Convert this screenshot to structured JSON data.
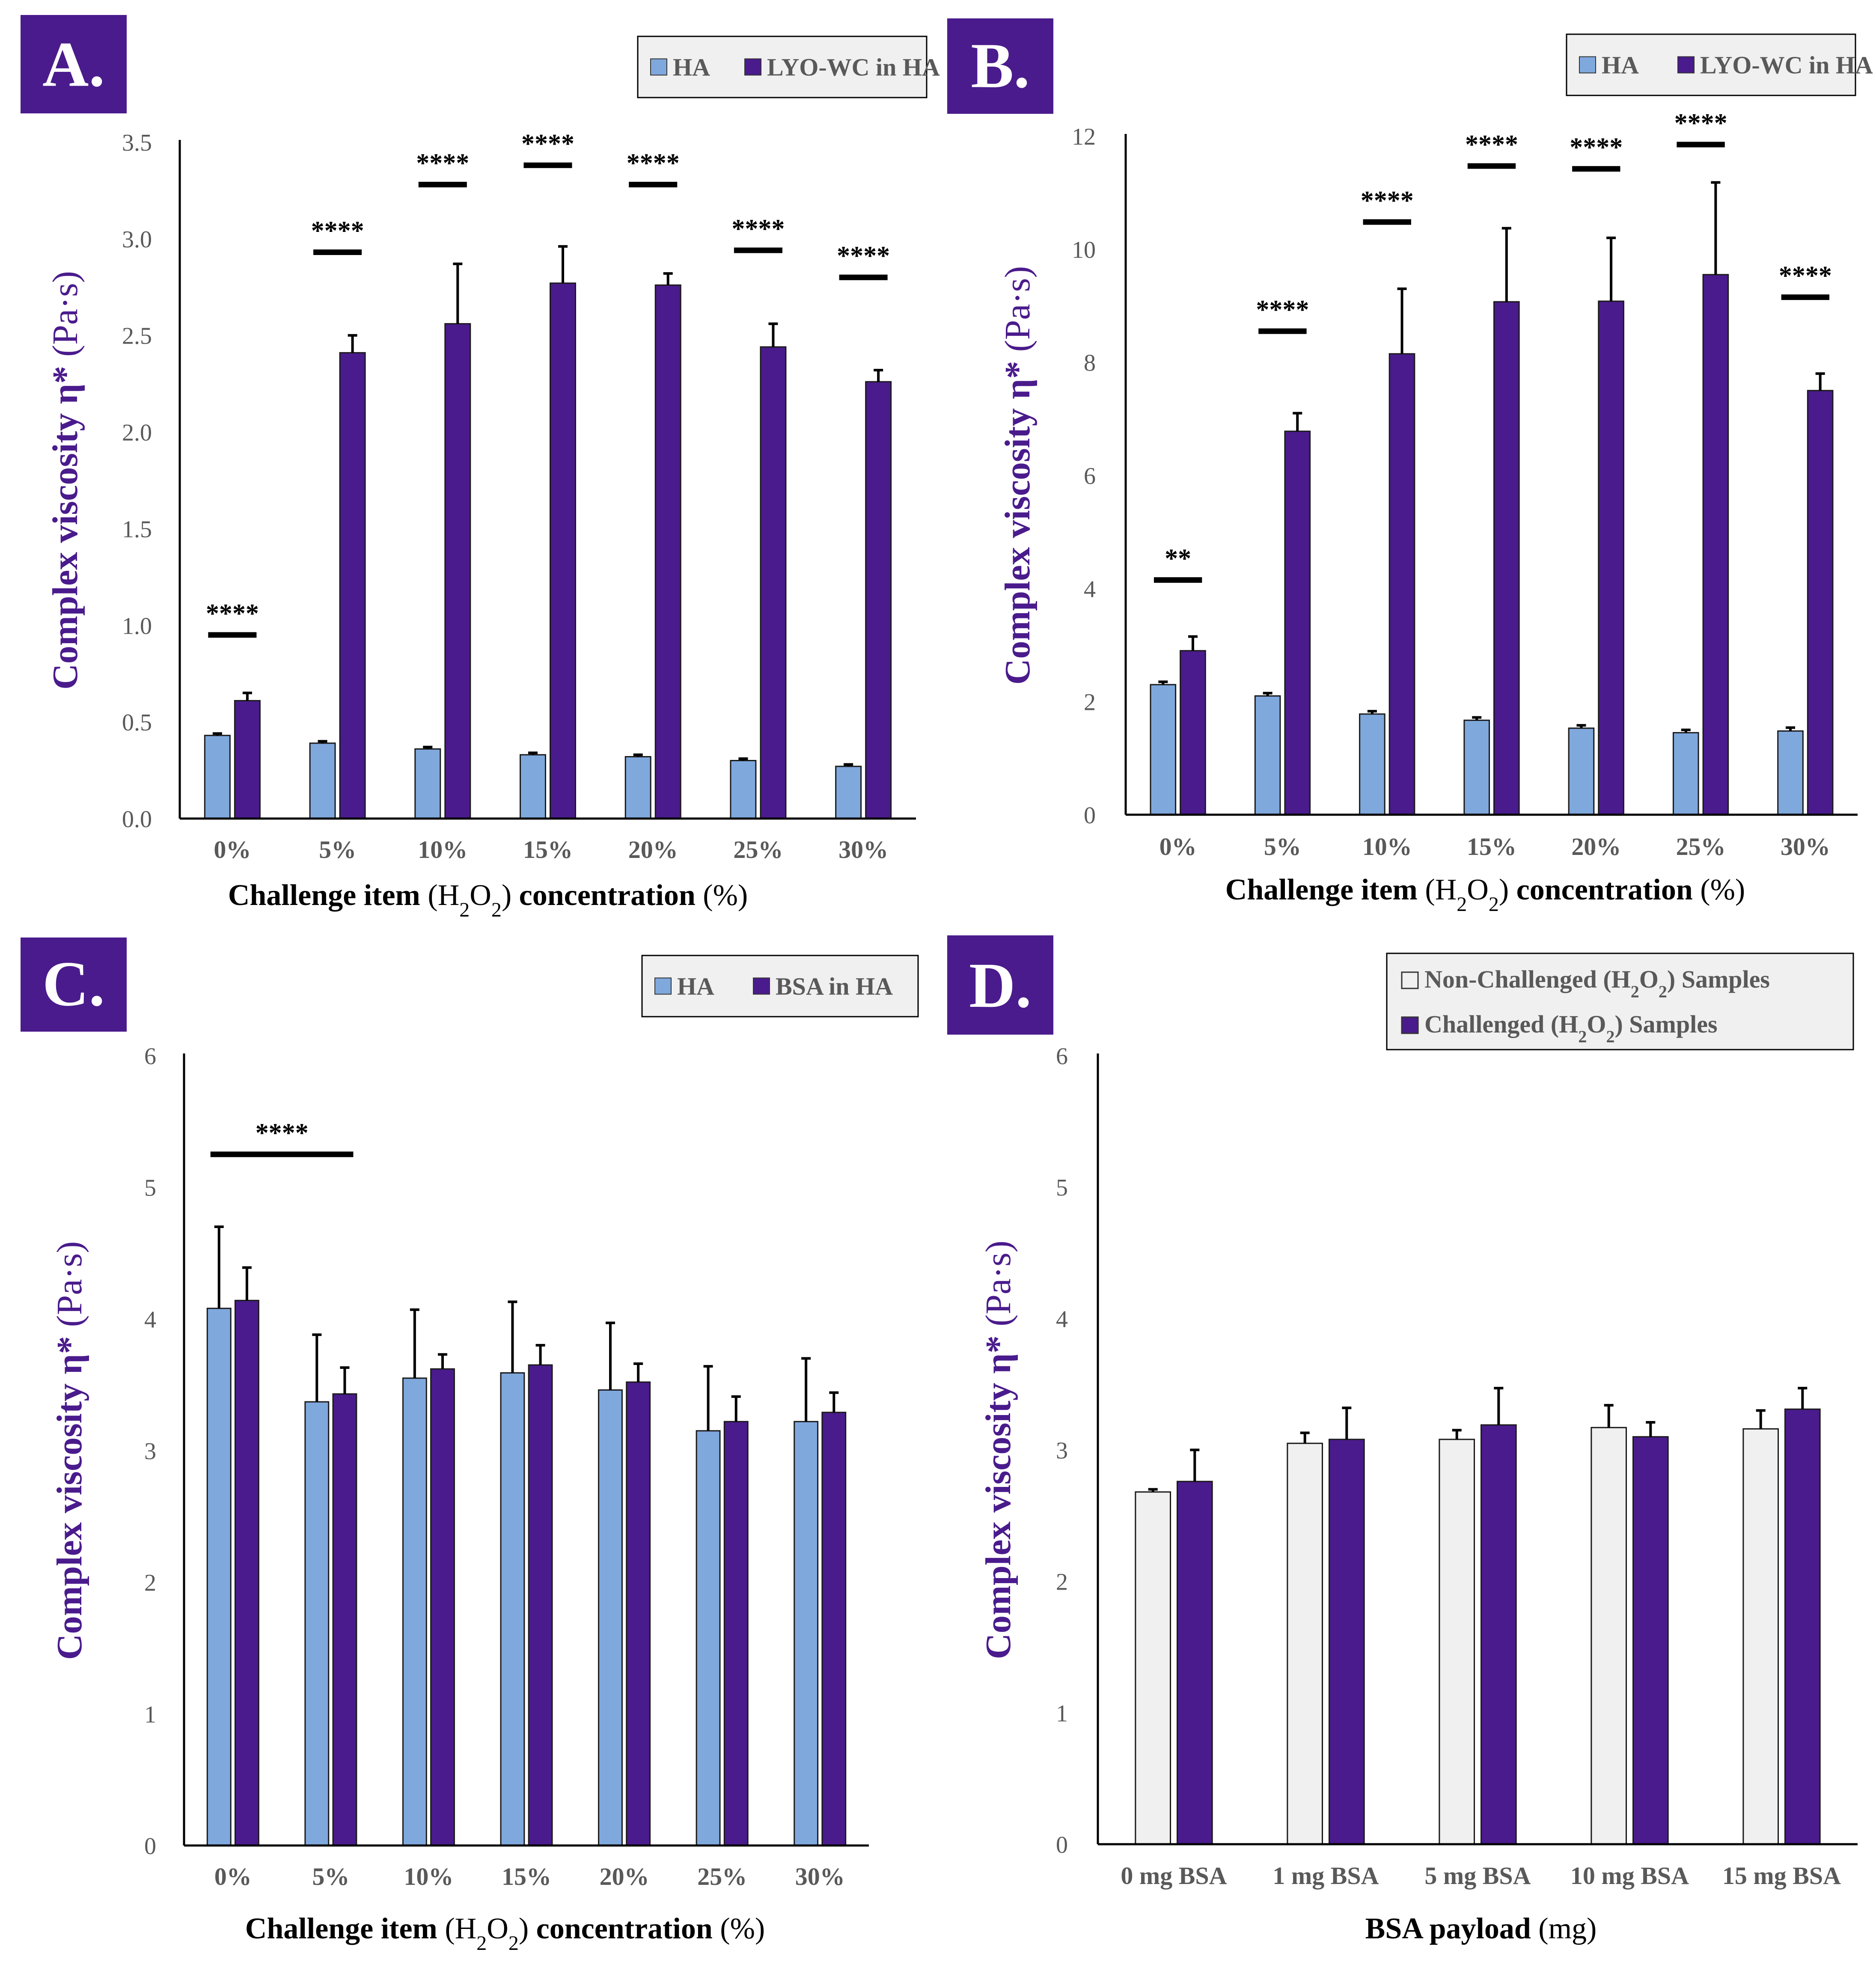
{
  "colors": {
    "ha": "#7FA8DD",
    "dark": "#4A1B8C",
    "light_grey": "#F0F0F0",
    "axis": "#000000",
    "tick_text": "#595959",
    "label_purple": "#4A1B8C",
    "legend_bg": "#F0F0F0"
  },
  "chart_data": [
    {
      "panel": "A.",
      "type": "bar",
      "title": "",
      "categories": [
        "0%",
        "5%",
        "10%",
        "15%",
        "20%",
        "25%",
        "30%"
      ],
      "series": [
        {
          "name": "HA",
          "color": "#7FA8DD",
          "values": [
            0.43,
            0.39,
            0.36,
            0.33,
            0.32,
            0.3,
            0.27
          ],
          "errors": [
            0.01,
            0.01,
            0.01,
            0.01,
            0.01,
            0.01,
            0.01
          ]
        },
        {
          "name": "LYO-WC in HA",
          "color": "#4A1B8C",
          "values": [
            0.61,
            2.41,
            2.56,
            2.77,
            2.76,
            2.44,
            2.26
          ],
          "errors": [
            0.04,
            0.09,
            0.31,
            0.19,
            0.06,
            0.12,
            0.06
          ]
        }
      ],
      "ylim": [
        0,
        3.5
      ],
      "yticks": [
        "0.0",
        "0.5",
        "1.0",
        "1.5",
        "2.0",
        "2.5",
        "3.0",
        "3.5"
      ],
      "ylabel_bold": "Complex viscosity η*",
      "ylabel_unit": "(Pa·s)",
      "xlabel": {
        "bold": "Challenge item",
        "h": "H",
        "sub1": "2",
        "o": "O",
        "sub2": "2",
        "bold2": "concentration",
        "unit": "(%)"
      },
      "significance": [
        {
          "label": "****",
          "y": 0.95,
          "from": 0,
          "to": 0
        },
        {
          "label": "****",
          "y": 2.93,
          "from": 1,
          "to": 1
        },
        {
          "label": "****",
          "y": 3.28,
          "from": 2,
          "to": 2
        },
        {
          "label": "****",
          "y": 3.38,
          "from": 3,
          "to": 3
        },
        {
          "label": "****",
          "y": 3.28,
          "from": 4,
          "to": 4
        },
        {
          "label": "****",
          "y": 2.94,
          "from": 5,
          "to": 5
        },
        {
          "label": "****",
          "y": 2.8,
          "from": 6,
          "to": 6
        }
      ],
      "legend": [
        {
          "name": "HA",
          "color": "#7FA8DD"
        },
        {
          "name": "LYO-WC in HA",
          "color": "#4A1B8C"
        }
      ],
      "legend_position": "top-right"
    },
    {
      "panel": "B.",
      "type": "bar",
      "title": "",
      "categories": [
        "0%",
        "5%",
        "10%",
        "15%",
        "20%",
        "25%",
        "30%"
      ],
      "series": [
        {
          "name": "HA",
          "color": "#7FA8DD",
          "values": [
            2.3,
            2.1,
            1.78,
            1.67,
            1.53,
            1.45,
            1.48
          ],
          "errors": [
            0.05,
            0.05,
            0.05,
            0.05,
            0.05,
            0.05,
            0.06
          ]
        },
        {
          "name": "LYO-WC in HA",
          "color": "#4A1B8C",
          "values": [
            2.9,
            6.78,
            8.15,
            9.07,
            9.08,
            9.55,
            7.5
          ],
          "errors": [
            0.25,
            0.32,
            1.15,
            1.3,
            1.12,
            1.63,
            0.3
          ]
        }
      ],
      "ylim": [
        0,
        12
      ],
      "yticks": [
        "0",
        "2",
        "4",
        "6",
        "8",
        "10",
        "12"
      ],
      "ylabel_bold": "Complex viscosity η*",
      "ylabel_unit": "(Pa·s)",
      "xlabel": {
        "bold": "Challenge item",
        "h": "H",
        "sub1": "2",
        "o": "O",
        "sub2": "2",
        "bold2": "concentration",
        "unit": "(%)"
      },
      "significance": [
        {
          "label": "**",
          "y": 4.15,
          "from": 0,
          "to": 0
        },
        {
          "label": "****",
          "y": 8.55,
          "from": 1,
          "to": 1
        },
        {
          "label": "****",
          "y": 10.48,
          "from": 2,
          "to": 2
        },
        {
          "label": "****",
          "y": 11.47,
          "from": 3,
          "to": 3
        },
        {
          "label": "****",
          "y": 11.42,
          "from": 4,
          "to": 4
        },
        {
          "label": "****",
          "y": 11.85,
          "from": 5,
          "to": 5
        },
        {
          "label": "****",
          "y": 9.15,
          "from": 6,
          "to": 6
        }
      ],
      "legend": [
        {
          "name": "HA",
          "color": "#7FA8DD"
        },
        {
          "name": "LYO-WC in HA",
          "color": "#4A1B8C"
        }
      ],
      "legend_position": "top-right"
    },
    {
      "panel": "C.",
      "type": "bar",
      "title": "",
      "categories": [
        "0%",
        "5%",
        "10%",
        "15%",
        "20%",
        "25%",
        "30%"
      ],
      "series": [
        {
          "name": "HA",
          "color": "#7FA8DD",
          "values": [
            4.08,
            3.37,
            3.55,
            3.59,
            3.46,
            3.15,
            3.22
          ],
          "errors": [
            0.62,
            0.51,
            0.52,
            0.54,
            0.51,
            0.49,
            0.48
          ]
        },
        {
          "name": "BSA in HA",
          "color": "#4A1B8C",
          "values": [
            4.14,
            3.43,
            3.62,
            3.65,
            3.52,
            3.22,
            3.29
          ],
          "errors": [
            0.25,
            0.2,
            0.11,
            0.15,
            0.14,
            0.19,
            0.15
          ]
        }
      ],
      "ylim": [
        0,
        6
      ],
      "yticks": [
        "0",
        "1",
        "2",
        "3",
        "4",
        "5",
        "6"
      ],
      "ylabel_bold": "Complex viscosity η*",
      "ylabel_unit": "(Pa·s)",
      "xlabel": {
        "bold": "Challenge item",
        "h": "H",
        "sub1": "2",
        "o": "O",
        "sub2": "2",
        "bold2": "concentration",
        "unit": "(%)"
      },
      "significance": [
        {
          "label": "****",
          "y": 5.25,
          "from": 0,
          "to": 1
        }
      ],
      "legend": [
        {
          "name": "HA",
          "color": "#7FA8DD"
        },
        {
          "name": "BSA in HA",
          "color": "#4A1B8C"
        }
      ],
      "legend_position": "top-right"
    },
    {
      "panel": "D.",
      "type": "bar",
      "title": "",
      "categories": [
        "0 mg BSA",
        "1 mg BSA",
        "5 mg BSA",
        "10 mg BSA",
        "15 mg BSA"
      ],
      "series": [
        {
          "name": "Non-Challenged (H2O2) Samples",
          "color": "#F0F0F0",
          "values": [
            2.68,
            3.05,
            3.08,
            3.17,
            3.16
          ],
          "errors": [
            0.02,
            0.08,
            0.07,
            0.17,
            0.14
          ]
        },
        {
          "name": "Challenged (H2O2) Samples",
          "color": "#4A1B8C",
          "values": [
            2.76,
            3.08,
            3.19,
            3.1,
            3.31
          ],
          "errors": [
            0.24,
            0.24,
            0.28,
            0.11,
            0.16
          ]
        }
      ],
      "ylim": [
        0,
        6
      ],
      "yticks": [
        "0",
        "1",
        "2",
        "3",
        "4",
        "5",
        "6"
      ],
      "ylabel_bold": "Complex viscosity η*",
      "ylabel_unit": "(Pa·s)",
      "xlabel": {
        "bold": "BSA payload",
        "unit": "(mg)"
      },
      "significance": [],
      "legend": [
        {
          "pre": "Non-Challenged",
          "h": "H",
          "sub1": "2",
          "o": "O",
          "sub2": "2",
          "post": "Samples",
          "color": "#F0F0F0"
        },
        {
          "pre": "Challenged",
          "h": "H",
          "sub1": "2",
          "o": "O",
          "sub2": "2",
          "post": "Samples",
          "color": "#4A1B8C"
        }
      ],
      "legend_position": "top-right"
    }
  ]
}
